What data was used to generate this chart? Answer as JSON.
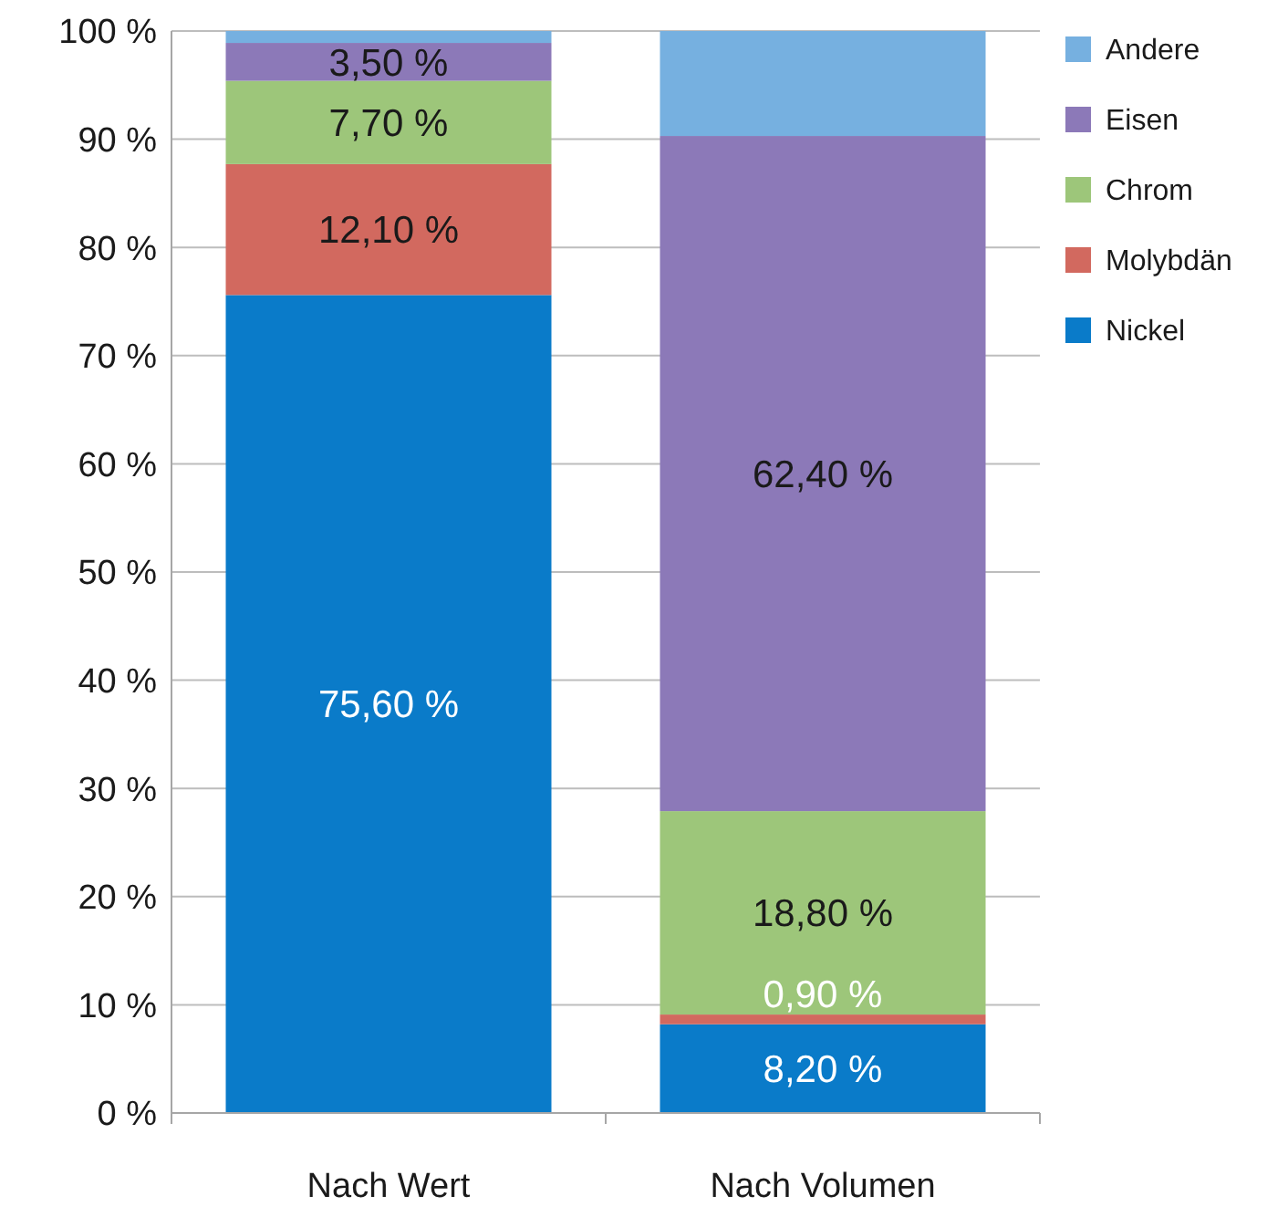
{
  "chart_data": {
    "type": "bar",
    "stacked": true,
    "categories": [
      "Nach Wert",
      "Nach Volumen"
    ],
    "series": [
      {
        "name": "Nickel",
        "color": "#0a7bc9",
        "values": [
          75.6,
          8.2
        ],
        "value_labels": [
          "75,60 %",
          "8,20 %"
        ]
      },
      {
        "name": "Molybdän",
        "color": "#d2695f",
        "values": [
          12.1,
          0.9
        ],
        "value_labels": [
          "12,10 %",
          "0,90 %"
        ]
      },
      {
        "name": "Chrom",
        "color": "#9dc67a",
        "values": [
          7.7,
          18.8
        ],
        "value_labels": [
          "7,70 %",
          "18,80 %"
        ]
      },
      {
        "name": "Eisen",
        "color": "#8c79b8",
        "values": [
          3.5,
          62.4
        ],
        "value_labels": [
          "3,50 %",
          "62,40 %"
        ]
      },
      {
        "name": "Andere",
        "color": "#76b0e0",
        "values": [
          1.1,
          9.7
        ],
        "value_labels": [
          null,
          null
        ]
      }
    ],
    "ylim": [
      0,
      100
    ],
    "yticks": [
      {
        "value": 0,
        "label": "0 %"
      },
      {
        "value": 10,
        "label": "10 %"
      },
      {
        "value": 20,
        "label": "20 %"
      },
      {
        "value": 30,
        "label": "30 %"
      },
      {
        "value": 40,
        "label": "40 %"
      },
      {
        "value": 50,
        "label": "50 %"
      },
      {
        "value": 60,
        "label": "60 %"
      },
      {
        "value": 70,
        "label": "70 %"
      },
      {
        "value": 80,
        "label": "80 %"
      },
      {
        "value": 90,
        "label": "90 %"
      },
      {
        "value": 100,
        "label": "100 %"
      }
    ],
    "grid": "y",
    "legend": "right"
  }
}
